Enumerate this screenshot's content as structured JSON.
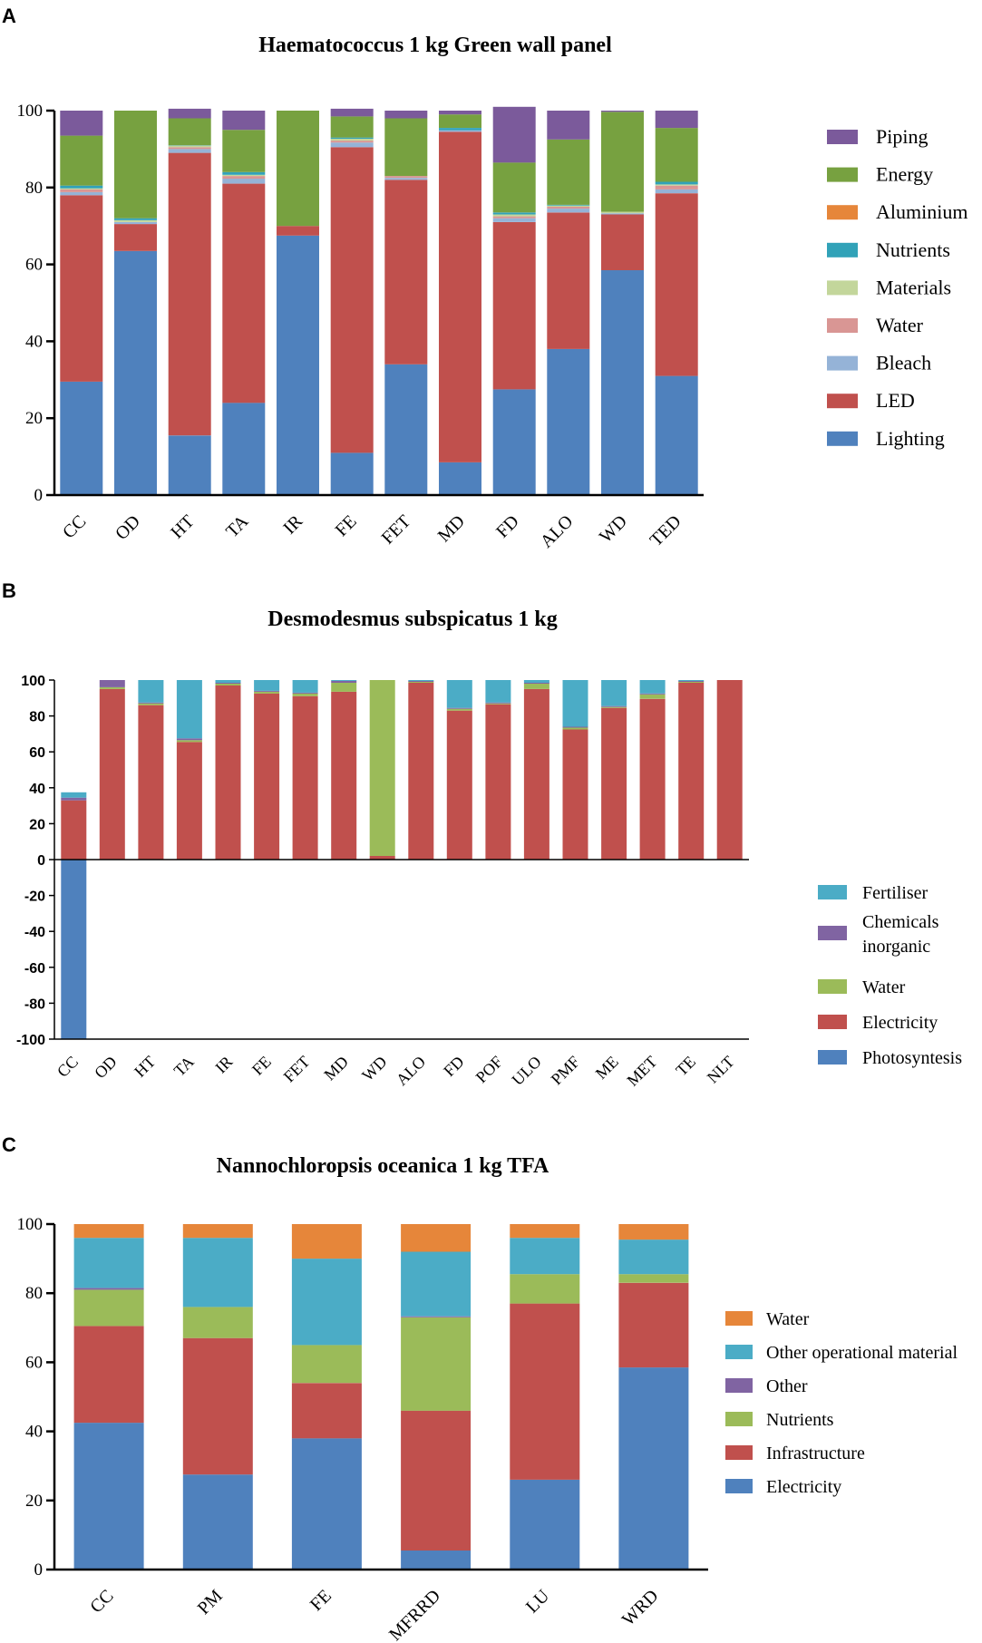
{
  "panels": [
    "A",
    "B",
    "C"
  ],
  "chart_data": [
    {
      "type": "bar",
      "stacked": true,
      "title": "Haematococcus 1 kg Green wall panel",
      "categories": [
        "CC",
        "OD",
        "HT",
        "TA",
        "IR",
        "FE",
        "FET",
        "MD",
        "FD",
        "ALO",
        "WD",
        "TED"
      ],
      "yticks": [
        "0",
        "20",
        "40",
        "60",
        "80",
        "100"
      ],
      "ylim": [
        0,
        100
      ],
      "series": [
        {
          "name": "Lighting",
          "color": "#4f81bd",
          "values": [
            29.5,
            63.5,
            15.5,
            24,
            67.5,
            11,
            34,
            8.5,
            27.5,
            38,
            58.5,
            31
          ]
        },
        {
          "name": "LED",
          "color": "#c0504d",
          "values": [
            48.5,
            7,
            73.5,
            57,
            2.5,
            79.5,
            48,
            86,
            43.5,
            35.5,
            14.5,
            47.5
          ]
        },
        {
          "name": "Bleach",
          "color": "#95b3d7",
          "values": [
            0.8,
            0.5,
            1,
            1.3,
            0,
            1.2,
            0.5,
            0.4,
            1,
            1,
            0.3,
            1
          ]
        },
        {
          "name": "Water",
          "color": "#d99694",
          "values": [
            0.7,
            0,
            0.5,
            0.7,
            0,
            0.5,
            0.5,
            0,
            0.5,
            0.5,
            0,
            1
          ]
        },
        {
          "name": "Materials",
          "color": "#c3d69b",
          "values": [
            0.3,
            0.5,
            0.4,
            0.3,
            0,
            0.5,
            0,
            0,
            0.5,
            0.3,
            0.4,
            0.3
          ]
        },
        {
          "name": "Nutrients",
          "color": "#31a2b8",
          "values": [
            0.7,
            0.5,
            0.1,
            0.7,
            0,
            0.3,
            0,
            0.6,
            0.5,
            0.2,
            0,
            0.7
          ]
        },
        {
          "name": "Aluminium",
          "color": "#e6863a",
          "values": [
            0,
            0,
            0,
            0,
            0,
            0,
            0,
            0,
            0,
            0,
            0,
            0
          ]
        },
        {
          "name": "Energy",
          "color": "#77a140",
          "values": [
            13,
            28,
            7,
            11,
            30,
            5.5,
            15,
            3.5,
            13,
            17,
            26,
            14
          ]
        },
        {
          "name": "Piping",
          "color": "#7b5a9b",
          "values": [
            6.5,
            0,
            2.5,
            5,
            0,
            2,
            2,
            1,
            14.5,
            7.5,
            0.3,
            4.5
          ]
        }
      ],
      "legend": [
        "Piping",
        "Energy",
        "Aluminium",
        "Nutrients",
        "Materials",
        "Water",
        "Bleach",
        "LED",
        "Lighting"
      ]
    },
    {
      "type": "bar",
      "stacked": true,
      "title": "Desmodesmus subspicatus 1 kg",
      "categories": [
        "CC",
        "OD",
        "HT",
        "TA",
        "IR",
        "FE",
        "FET",
        "MD",
        "WD",
        "ALO",
        "FD",
        "POF",
        "ULO",
        "PMF",
        "ME",
        "MET",
        "TE",
        "NLT"
      ],
      "yticks": [
        "-100",
        "-80",
        "-60",
        "-40",
        "-20",
        "0",
        "20",
        "40",
        "60",
        "80",
        "100"
      ],
      "ylim": [
        -100,
        100
      ],
      "series": [
        {
          "name": "Photosyntesis",
          "color": "#4f81bd",
          "values": [
            -100,
            0,
            0,
            0,
            0,
            0,
            0,
            0,
            0,
            0,
            0,
            0,
            0,
            0,
            0,
            0,
            0,
            0
          ]
        },
        {
          "name": "Electricity",
          "color": "#c0504d",
          "values": [
            33,
            95,
            86,
            65.5,
            97,
            92.5,
            91,
            93.5,
            2,
            98.5,
            83,
            86.5,
            95,
            72.5,
            84.5,
            89.5,
            98.5,
            100
          ]
        },
        {
          "name": "Water",
          "color": "#9bbb59",
          "values": [
            0,
            1,
            1,
            1,
            1,
            1,
            1.5,
            5,
            98,
            0.5,
            1,
            0.5,
            3,
            1,
            0.5,
            2.5,
            0.5,
            0
          ]
        },
        {
          "name": "Chemicals inorganic",
          "color": "#8064a2",
          "values": [
            1.5,
            4,
            0.5,
            1,
            0.5,
            0.5,
            0.5,
            1,
            0,
            0.5,
            0.5,
            0.5,
            0.5,
            0.5,
            0.5,
            0.5,
            0.5,
            0
          ]
        },
        {
          "name": "Fertiliser",
          "color": "#4bacc6",
          "values": [
            3,
            0,
            12.5,
            32.5,
            1.5,
            6,
            7,
            0.5,
            0,
            0.5,
            15.5,
            12.5,
            1.5,
            26,
            14.5,
            7.5,
            0.5,
            0
          ]
        }
      ],
      "legend": [
        "Fertiliser",
        "Chemicals inorganic",
        "Water",
        "Electricity",
        "Photosyntesis"
      ]
    },
    {
      "type": "bar",
      "stacked": true,
      "title": "Nannochloropsis oceanica 1 kg TFA",
      "categories": [
        "CC",
        "PM",
        "FE",
        "MFRRD",
        "LU",
        "WRD"
      ],
      "yticks": [
        "0",
        "20",
        "40",
        "60",
        "80",
        "100"
      ],
      "ylim": [
        0,
        100
      ],
      "series": [
        {
          "name": "Electricity",
          "color": "#4f81bd",
          "values": [
            42.5,
            27.5,
            38,
            5.5,
            26,
            58.5
          ]
        },
        {
          "name": "Infrastructure",
          "color": "#c0504d",
          "values": [
            28,
            39.5,
            16,
            40.5,
            51,
            24.5
          ]
        },
        {
          "name": "Nutrients",
          "color": "#9bbb59",
          "values": [
            10.5,
            9,
            11,
            27,
            8.5,
            2.5
          ]
        },
        {
          "name": "Other",
          "color": "#8064a2",
          "values": [
            0.5,
            0,
            0,
            0.3,
            0,
            0
          ]
        },
        {
          "name": "Other operational material",
          "color": "#4bacc6",
          "values": [
            14.5,
            20,
            25,
            18.7,
            10.5,
            10
          ]
        },
        {
          "name": "Water",
          "color": "#e6863a",
          "values": [
            4,
            4,
            10,
            8,
            4,
            4.5
          ]
        }
      ],
      "legend": [
        "Water",
        "Other operational material",
        "Other",
        "Nutrients",
        "Infrastructure",
        "Electricity"
      ]
    }
  ]
}
